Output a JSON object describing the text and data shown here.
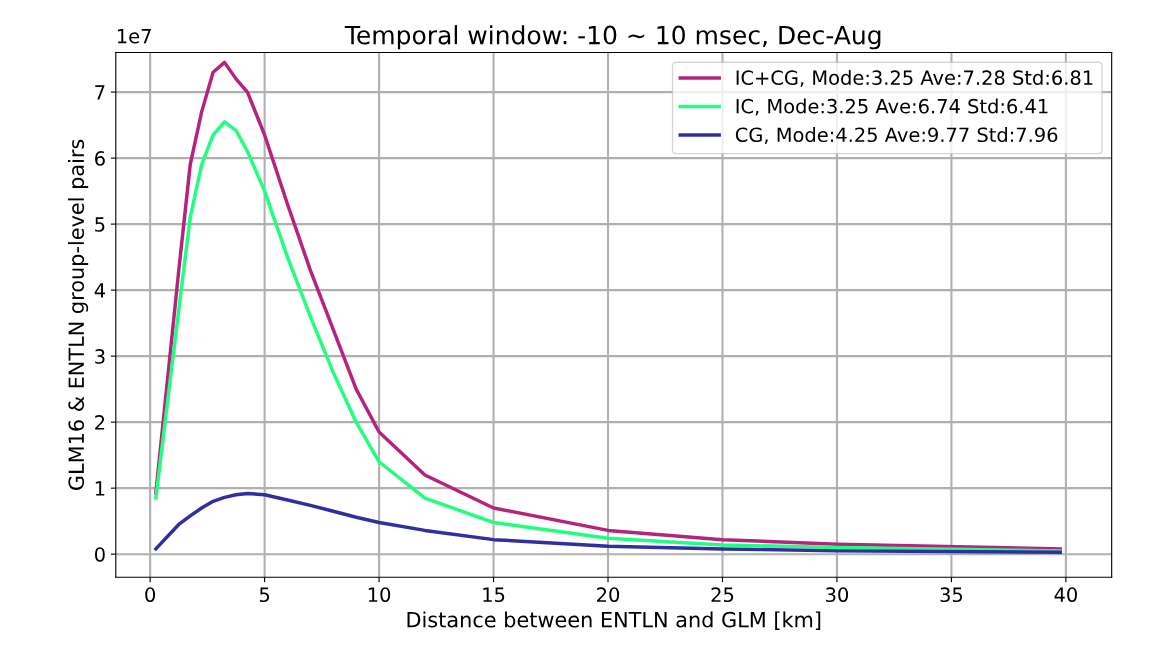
{
  "chart_data": {
    "type": "line",
    "title": "Temporal window: -10 ~ 10 msec, Dec-Aug",
    "xlabel": "Distance between ENTLN and GLM [km]",
    "ylabel": "GLM16 & ENTLN group-level pairs",
    "annotations": [
      "1e7"
    ],
    "x": [
      0.25,
      1.25,
      1.75,
      2.25,
      2.75,
      3.25,
      3.75,
      4.25,
      5,
      6,
      7,
      8,
      9,
      10,
      12,
      15,
      20,
      25,
      30,
      39.75
    ],
    "series": [
      {
        "name": "IC+CG, Mode:3.25 Ave:7.28 Std:6.81",
        "color": "#b5237e",
        "values": [
          0.93,
          4.3,
          5.9,
          6.7,
          7.3,
          7.45,
          7.2,
          7.0,
          6.35,
          5.3,
          4.3,
          3.4,
          2.5,
          1.85,
          1.2,
          0.7,
          0.36,
          0.22,
          0.15,
          0.08
        ]
      },
      {
        "name": "IC, Mode:3.25 Ave:6.74 Std:6.41",
        "color": "#22ff7f",
        "values": [
          0.85,
          3.7,
          5.1,
          5.9,
          6.35,
          6.55,
          6.42,
          6.1,
          5.5,
          4.5,
          3.6,
          2.75,
          2.0,
          1.4,
          0.85,
          0.48,
          0.24,
          0.14,
          0.1,
          0.05
        ]
      },
      {
        "name": "CG, Mode:4.25 Ave:9.77 Std:7.96",
        "color": "#2f2fa0",
        "values": [
          0.08,
          0.45,
          0.58,
          0.7,
          0.8,
          0.86,
          0.9,
          0.92,
          0.9,
          0.82,
          0.74,
          0.65,
          0.56,
          0.48,
          0.36,
          0.22,
          0.12,
          0.08,
          0.05,
          0.03
        ]
      }
    ],
    "xlim": [
      -1.5,
      42
    ],
    "xticks": [
      0,
      5,
      10,
      15,
      20,
      25,
      30,
      35,
      40
    ],
    "ylim": [
      -0.35,
      7.6
    ],
    "yticks": [
      0,
      1,
      2,
      3,
      4,
      5,
      6,
      7
    ],
    "grid": true,
    "legend": "top right"
  }
}
